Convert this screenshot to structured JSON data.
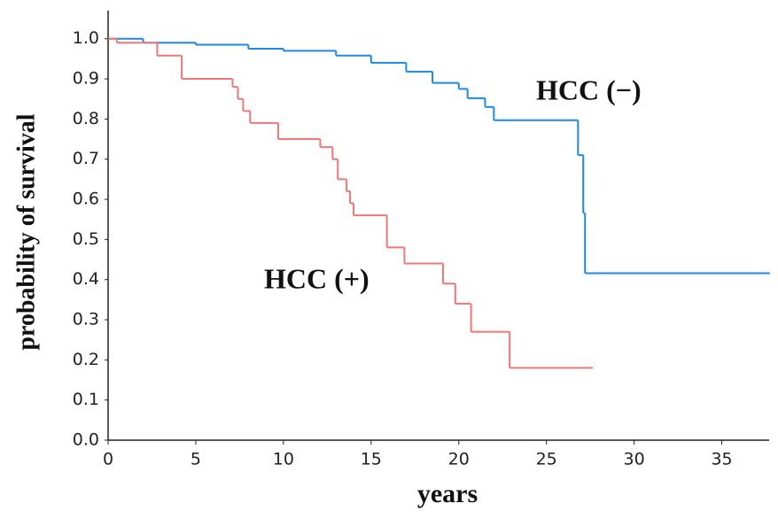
{
  "chart_data": {
    "type": "step",
    "xlabel": "years",
    "ylabel": "probability of survival",
    "xlim": [
      0,
      37.7
    ],
    "ylim": [
      0,
      1.07
    ],
    "xticks": [
      0,
      5,
      10,
      15,
      20,
      25,
      30,
      35
    ],
    "yticks": [
      {
        "value": 0,
        "label": "0.0"
      },
      0.1,
      0.2,
      0.3,
      0.4,
      0.5,
      0.6,
      0.7,
      0.8,
      0.9,
      {
        "value": 1,
        "label": "1.0"
      }
    ],
    "grid": false,
    "series": [
      {
        "name": "HCC (−)",
        "color": "#1e88e5",
        "x": [
          0,
          2,
          5,
          8,
          10,
          13,
          15,
          17,
          18.5,
          20,
          20.5,
          21.5,
          22,
          26.8,
          27.1,
          27.2,
          37.7
        ],
        "values": [
          1.0,
          0.99,
          0.985,
          0.975,
          0.97,
          0.958,
          0.94,
          0.918,
          0.89,
          0.875,
          0.852,
          0.83,
          0.797,
          0.71,
          0.566,
          0.416,
          0.416
        ]
      },
      {
        "name": "HCC (+)",
        "color": "#ee7777",
        "x": [
          0,
          0.5,
          2.8,
          4.2,
          7.1,
          7.4,
          7.7,
          8.1,
          9.7,
          12.1,
          12.8,
          13.1,
          13.6,
          13.8,
          14.0,
          15.9,
          16.9,
          19.1,
          19.8,
          20.7,
          22.9,
          27.6
        ],
        "values": [
          1.0,
          0.99,
          0.958,
          0.9,
          0.88,
          0.85,
          0.82,
          0.79,
          0.75,
          0.73,
          0.7,
          0.65,
          0.62,
          0.59,
          0.56,
          0.48,
          0.44,
          0.39,
          0.34,
          0.27,
          0.18,
          0.18
        ]
      }
    ]
  }
}
